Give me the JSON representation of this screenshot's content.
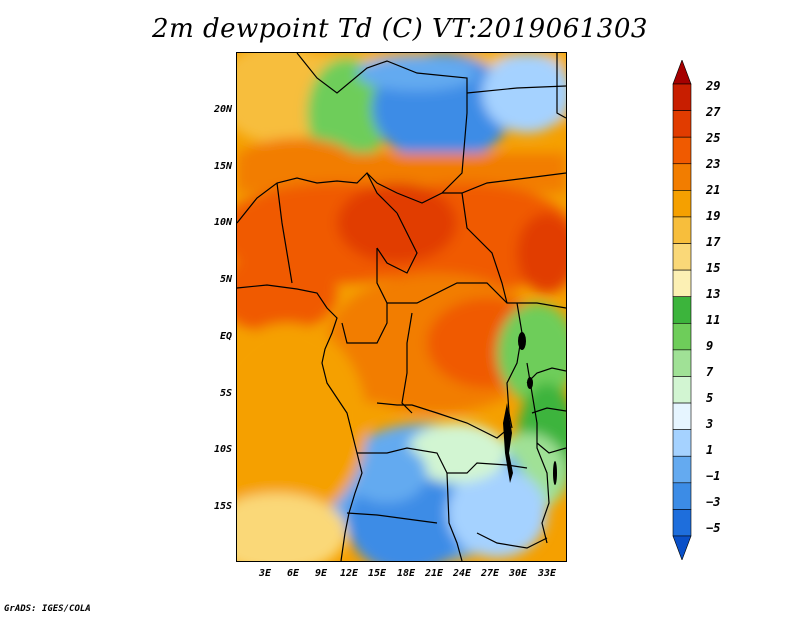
{
  "title": "2m dewpoint Td (C) VT:2019061303",
  "credit": "GrADS: IGES/COLA",
  "map": {
    "variable": "2m dewpoint",
    "units": "C",
    "region": "Central Africa",
    "lat_labels": [
      "20N",
      "15N",
      "10N",
      "5N",
      "EQ",
      "5S",
      "10S",
      "15S"
    ],
    "lon_labels": [
      "3E",
      "6E",
      "9E",
      "12E",
      "15E",
      "18E",
      "21E",
      "24E",
      "27E",
      "30E",
      "33E"
    ]
  },
  "colorbar": {
    "levels": [
      "29",
      "27",
      "25",
      "23",
      "21",
      "19",
      "17",
      "15",
      "13",
      "11",
      "9",
      "7",
      "5",
      "3",
      "1",
      "−1",
      "−3",
      "−5"
    ],
    "colors": [
      "#a50000",
      "#c81e00",
      "#e13c00",
      "#f05a00",
      "#f27d00",
      "#f5a000",
      "#f7be3c",
      "#fad878",
      "#fcf0b4",
      "#3cb43c",
      "#6ecd5a",
      "#a0e196",
      "#d2f5d2",
      "#e6f5ff",
      "#a5d2ff",
      "#64aaf0",
      "#3c8ce6",
      "#1e6edc",
      "#0a50c8"
    ]
  }
}
